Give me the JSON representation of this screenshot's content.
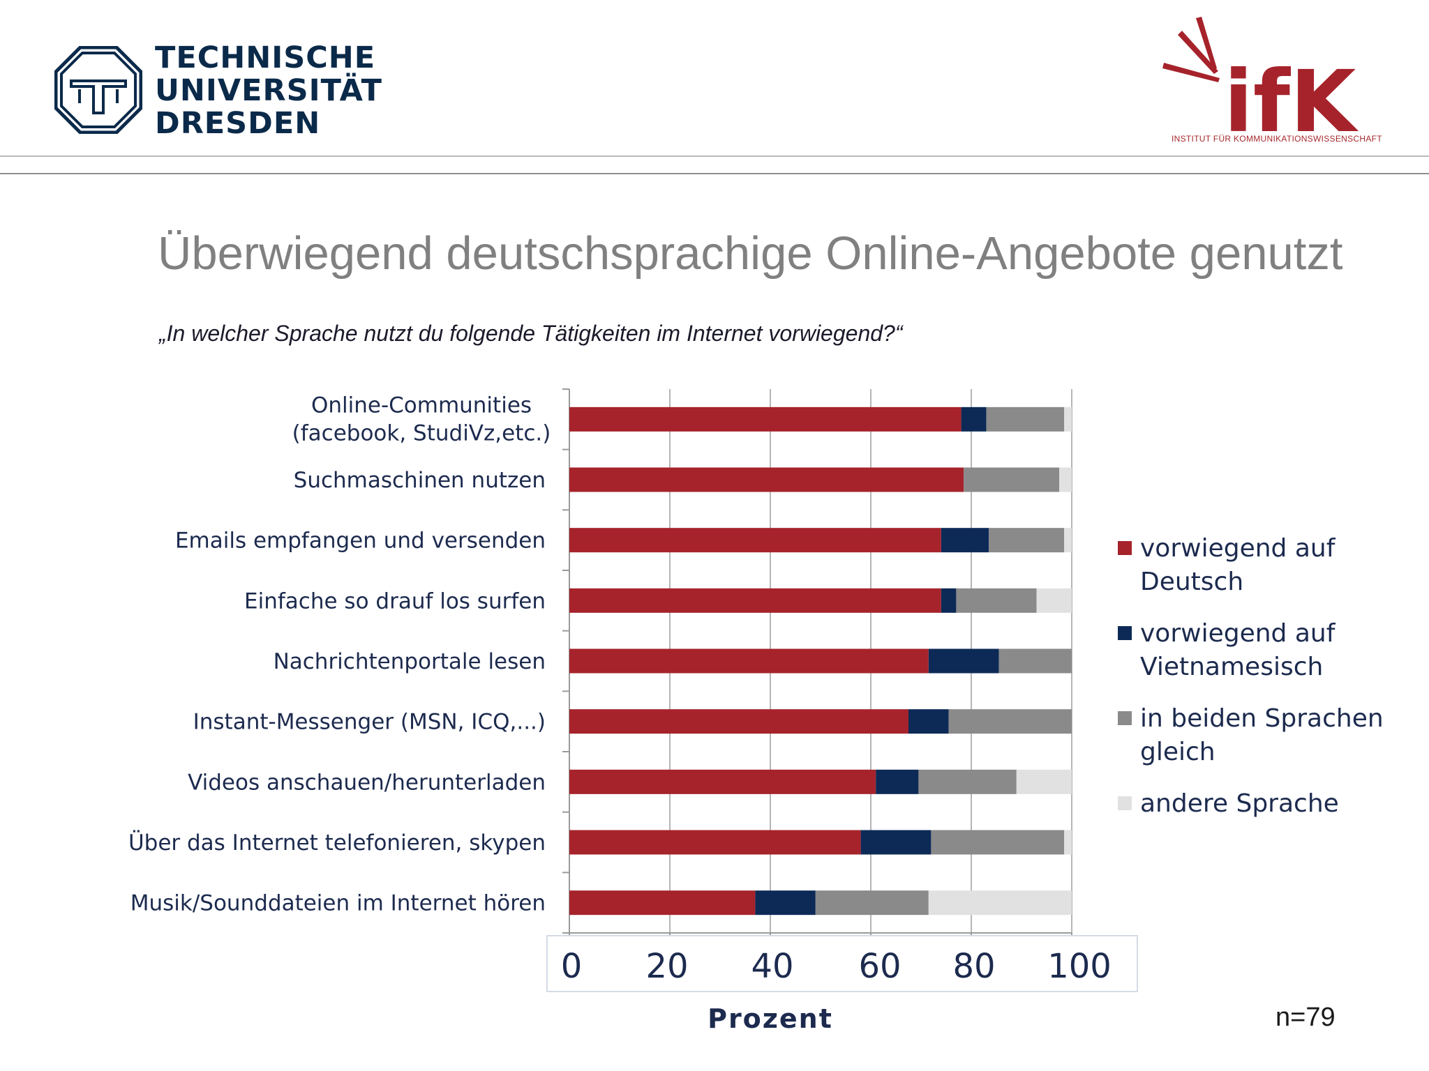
{
  "header": {
    "university_lines": [
      "TECHNISCHE",
      "UNIVERSITÄT",
      "DRESDEN"
    ],
    "institute_logo_text": "ifK",
    "institute_name": "Institut für Kommunikationswissenschaft"
  },
  "slide": {
    "title": "Überwiegend deutschsprachige Online-Angebote genutzt",
    "question": "„In welcher Sprache nutzt du folgende Tätigkeiten im Internet vorwiegend?“",
    "sample_size": "n=79"
  },
  "colors": {
    "deutsch": "#a6232b",
    "vietnamesisch": "#0d2a57",
    "beide": "#8a8a8a",
    "andere": "#e1e1e1"
  },
  "chart_data": {
    "type": "bar",
    "orientation": "horizontal",
    "stacked": true,
    "categories": [
      [
        "Online-Communities",
        "(facebook, StudiVz,etc.)"
      ],
      [
        "Suchmaschinen nutzen"
      ],
      [
        "Emails empfangen und versenden"
      ],
      [
        "Einfache so drauf los surfen"
      ],
      [
        "Nachrichtenportale lesen"
      ],
      [
        "Instant-Messenger (MSN, ICQ,...)"
      ],
      [
        "Videos anschauen/herunterladen"
      ],
      [
        "Über das Internet telefonieren, skypen"
      ],
      [
        "Musik/Sounddateien im Internet hören"
      ]
    ],
    "series": [
      {
        "name": "vorwiegend auf Deutsch",
        "color_key": "deutsch",
        "legend_lines": [
          "vorwiegend auf",
          "Deutsch"
        ],
        "values": [
          78,
          78.5,
          74,
          74,
          71.5,
          67.5,
          61,
          58,
          37
        ]
      },
      {
        "name": "vorwiegend auf Vietnamesisch",
        "color_key": "vietnamesisch",
        "legend_lines": [
          "vorwiegend auf",
          "Vietnamesisch"
        ],
        "values": [
          5,
          0,
          9.5,
          3,
          14,
          8,
          8.5,
          14,
          12
        ]
      },
      {
        "name": "in beiden Sprachen gleich",
        "color_key": "beide",
        "legend_lines": [
          "in beiden Sprachen",
          "gleich"
        ],
        "values": [
          15.5,
          19,
          15,
          16,
          14.5,
          24.5,
          19.5,
          26.5,
          22.5
        ]
      },
      {
        "name": "andere Sprache",
        "color_key": "andere",
        "legend_lines": [
          "andere Sprache"
        ],
        "values": [
          1.5,
          2.5,
          1.5,
          7,
          0,
          0,
          11,
          1.5,
          28.5
        ]
      }
    ],
    "x_ticks": [
      "0",
      "20",
      "40",
      "60",
      "80",
      "100"
    ],
    "xlim": [
      0,
      100
    ],
    "xlabel": "Prozent",
    "grid": true,
    "legend_position": "right"
  }
}
